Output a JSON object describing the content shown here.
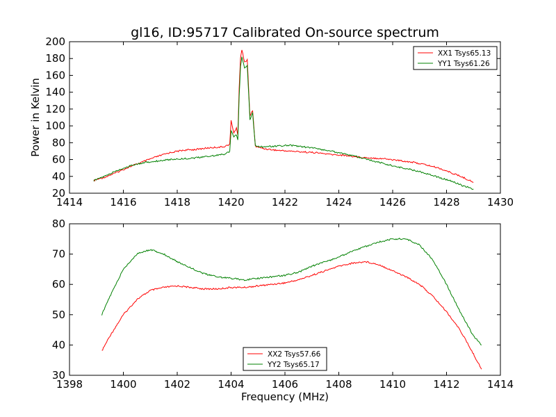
{
  "chart_data": [
    {
      "type": "line",
      "title": "gl16, ID:95717 Calibrated On-source spectrum",
      "xlabel": "",
      "ylabel": "Power in Kelvin",
      "xlim": [
        1414,
        1430
      ],
      "ylim": [
        20,
        200
      ],
      "xticks": [
        1414,
        1416,
        1418,
        1420,
        1422,
        1424,
        1426,
        1428,
        1430
      ],
      "yticks": [
        20,
        40,
        60,
        80,
        100,
        120,
        140,
        160,
        180,
        200
      ],
      "legend": "top-right",
      "series": [
        {
          "name": "XX1 Tsys65.13",
          "color": "#ff0000",
          "x": [
            1414.9,
            1415.3,
            1415.7,
            1416.2,
            1416.7,
            1417.2,
            1417.7,
            1418.2,
            1418.7,
            1419.2,
            1419.7,
            1419.95,
            1420.0,
            1420.1,
            1420.2,
            1420.25,
            1420.3,
            1420.35,
            1420.4,
            1420.5,
            1420.6,
            1420.7,
            1420.8,
            1420.9,
            1421.2,
            1421.7,
            1422.2,
            1422.7,
            1423.2,
            1423.7,
            1424.2,
            1424.7,
            1425.2,
            1425.7,
            1426.2,
            1426.7,
            1427.2,
            1427.7,
            1428.2,
            1428.6,
            1429.0
          ],
          "y": [
            35,
            39,
            44,
            51,
            57,
            63,
            68,
            71,
            72,
            74,
            75,
            78,
            106,
            92,
            97,
            90,
            145,
            180,
            191,
            176,
            178,
            112,
            118,
            76,
            73,
            71,
            70,
            69,
            68,
            66,
            65,
            63,
            62,
            61,
            59,
            57,
            54,
            50,
            44,
            39,
            33
          ]
        },
        {
          "name": "YY1 Tsys61.26",
          "color": "#008000",
          "x": [
            1414.9,
            1415.3,
            1415.7,
            1416.2,
            1416.7,
            1417.2,
            1417.7,
            1418.2,
            1418.7,
            1419.2,
            1419.7,
            1419.95,
            1420.0,
            1420.1,
            1420.2,
            1420.25,
            1420.3,
            1420.35,
            1420.4,
            1420.5,
            1420.6,
            1420.7,
            1420.8,
            1420.9,
            1421.2,
            1421.7,
            1422.2,
            1422.7,
            1423.2,
            1423.7,
            1424.2,
            1424.7,
            1425.2,
            1425.7,
            1426.2,
            1426.7,
            1427.2,
            1427.7,
            1428.2,
            1428.6,
            1429.0
          ],
          "y": [
            35,
            40,
            46,
            52,
            56,
            58,
            60,
            61,
            62,
            64,
            66,
            69,
            95,
            87,
            90,
            84,
            135,
            170,
            182,
            168,
            172,
            108,
            115,
            76,
            75,
            76,
            77,
            75,
            73,
            70,
            67,
            63,
            59,
            55,
            51,
            48,
            44,
            39,
            34,
            29,
            25
          ]
        }
      ]
    },
    {
      "type": "line",
      "title": "",
      "xlabel": "Frequency (MHz)",
      "ylabel": "",
      "xlim": [
        1398,
        1414
      ],
      "ylim": [
        30,
        80
      ],
      "xticks": [
        1398,
        1400,
        1402,
        1404,
        1406,
        1408,
        1410,
        1412,
        1414
      ],
      "yticks": [
        30,
        40,
        50,
        60,
        70,
        80
      ],
      "legend": "bottom-center",
      "series": [
        {
          "name": "XX2 Tsys57.66",
          "color": "#ff0000",
          "x": [
            1399.2,
            1399.5,
            1400.0,
            1400.5,
            1401.0,
            1401.5,
            1402.0,
            1402.5,
            1403.0,
            1403.5,
            1404.0,
            1404.5,
            1405.0,
            1405.5,
            1406.0,
            1406.5,
            1407.0,
            1407.5,
            1408.0,
            1408.5,
            1409.0,
            1409.5,
            1410.0,
            1410.5,
            1411.0,
            1411.5,
            1412.0,
            1412.5,
            1413.0,
            1413.3
          ],
          "y": [
            38,
            43,
            50,
            55,
            58,
            59,
            59.5,
            59,
            58.5,
            58.5,
            59,
            59,
            59.5,
            60,
            60.5,
            61.5,
            63,
            64.5,
            66,
            67,
            67.5,
            66.5,
            64.5,
            62.5,
            60,
            56,
            51,
            45,
            37,
            32
          ]
        },
        {
          "name": "YY2 Tsys65.17",
          "color": "#008000",
          "x": [
            1399.2,
            1399.5,
            1400.0,
            1400.5,
            1401.0,
            1401.5,
            1402.0,
            1402.5,
            1403.0,
            1403.5,
            1404.0,
            1404.5,
            1405.0,
            1405.5,
            1406.0,
            1406.5,
            1407.0,
            1407.5,
            1408.0,
            1408.5,
            1409.0,
            1409.5,
            1410.0,
            1410.5,
            1411.0,
            1411.5,
            1412.0,
            1412.5,
            1413.0,
            1413.3
          ],
          "y": [
            50,
            56,
            65,
            70,
            71.5,
            70,
            67.5,
            65.5,
            63.5,
            62.5,
            62,
            61.5,
            62,
            62.5,
            63,
            64,
            66,
            67.5,
            69,
            71,
            72.5,
            74,
            75,
            75,
            73,
            68,
            60,
            51,
            43,
            40
          ]
        }
      ]
    }
  ]
}
